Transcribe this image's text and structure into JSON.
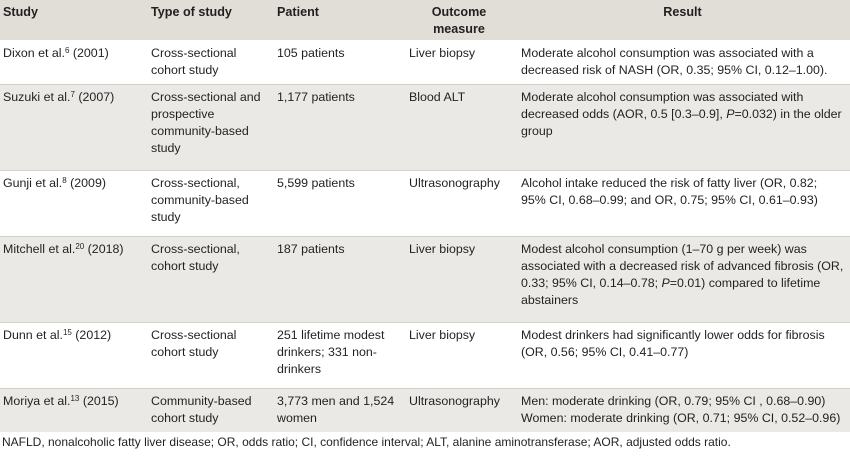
{
  "table": {
    "headers": [
      "Study",
      "Type of study",
      "Patient",
      "Outcome measure",
      "Result"
    ],
    "rows": [
      {
        "study": "Dixon et al.",
        "ref": "6",
        "year": "(2001)",
        "type": "Cross-sectional cohort study",
        "patient": "105 patients",
        "outcome": "Liver biopsy",
        "result": "Moderate alcohol consumption was associated with a decreased risk of NASH (OR, 0.35; 95% CI, 0.12–1.00)."
      },
      {
        "study": "Suzuki et al.",
        "ref": "7",
        "year": "(2007)",
        "type": "Cross-sectional and prospective community-based study",
        "patient": "1,177 patients",
        "outcome": "Blood ALT",
        "result_a": "Moderate alcohol consumption was associated with decreased odds (AOR, 0.5 [0.3–0.9], ",
        "result_p": "P",
        "result_b": "=0.032) in the older group"
      },
      {
        "study": "Gunji et al.",
        "ref": "8",
        "year": "(2009)",
        "type": "Cross-sectional, community-based study",
        "patient": "5,599 patients",
        "outcome": "Ultrasonography",
        "result": "Alcohol intake reduced the risk of fatty liver (OR, 0.82; 95% CI, 0.68–0.99; and OR, 0.75; 95% CI, 0.61–0.93)"
      },
      {
        "study": "Mitchell et al.",
        "ref": "20",
        "year": "(2018)",
        "type": "Cross-sectional, cohort study",
        "patient": "187 patients",
        "outcome": "Liver biopsy",
        "result_a": "Modest alcohol consumption (1–70 g per week) was associated with a decreased risk of advanced fibrosis (OR, 0.33; 95% CI, 0.14–0.78; ",
        "result_p": "P",
        "result_b": "=0.01) compared to lifetime abstainers"
      },
      {
        "study": "Dunn et al.",
        "ref": "15",
        "year": "(2012)",
        "type": "Cross-sectional cohort study",
        "patient": "251 lifetime modest drinkers; 331 non-drinkers",
        "outcome": "Liver biopsy",
        "result": "Modest drinkers had significantly lower odds for fibrosis (OR, 0.56; 95% CI, 0.41–0.77)"
      },
      {
        "study": "Moriya et al.",
        "ref": "13",
        "year": "(2015)",
        "type": "Community-based cohort study",
        "patient": "3,773 men and 1,524 women",
        "outcome": "Ultrasonography",
        "result_line1": "Men: moderate drinking (OR, 0.79; 95% CI , 0.68–0.90)",
        "result_line2": "Women: moderate drinking (OR, 0.71; 95% CI, 0.52–0.96)"
      }
    ]
  },
  "footnote": "NAFLD, nonalcoholic fatty liver disease; OR, odds ratio; CI, confidence interval; ALT, alanine aminotransferase; AOR, adjusted odds ratio.",
  "colors": {
    "header_bg": "#e1ded8",
    "stripe_bg": "#ebe9e6",
    "text": "#231f20"
  }
}
